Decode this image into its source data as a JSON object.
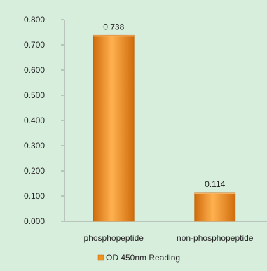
{
  "chart_data": {
    "type": "bar",
    "categories": [
      "phosphopeptide",
      "non-phosphopeptide"
    ],
    "series": [
      {
        "name": "OD 450nm Reading",
        "values": [
          0.738,
          0.114
        ]
      }
    ],
    "data_labels": [
      "0.738",
      "0.114"
    ],
    "ylim": [
      0,
      0.8
    ],
    "yticks": [
      0.0,
      0.1,
      0.2,
      0.3,
      0.4,
      0.5,
      0.6,
      0.7,
      0.8
    ],
    "ytick_labels": [
      "0.000",
      "0.100",
      "0.200",
      "0.300",
      "0.400",
      "0.500",
      "0.600",
      "0.700",
      "0.800"
    ],
    "title": "",
    "xlabel": "",
    "ylabel": "",
    "grid": false,
    "legend_position": "bottom"
  },
  "colors": {
    "background": "#d8eedd",
    "bar": "#f0921f",
    "bar_light": "#ffb150",
    "bar_dark": "#d06c0c",
    "axis": "#9a9a9a",
    "text": "#222222"
  }
}
